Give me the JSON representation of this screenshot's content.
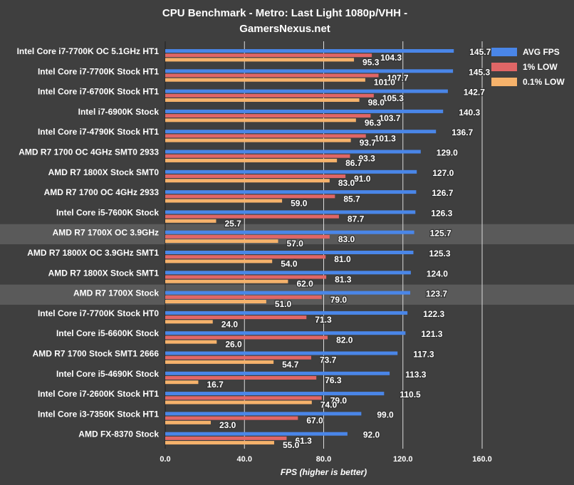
{
  "chart_data": {
    "type": "bar",
    "orientation": "horizontal",
    "title": "CPU Benchmark - Metro: Last Light 1080p/VHH - GamersNexus.net",
    "xlabel": "FPS (higher is better)",
    "ylabel": "",
    "xlim": [
      0,
      160
    ],
    "xticks": [
      "0.0",
      "40.0",
      "80.0",
      "120.0",
      "160.0"
    ],
    "grid": "vertical",
    "legend_position": "top-right",
    "highlighted_categories": [
      "AMD R7 1700X OC 3.9GHz",
      "AMD R7 1700X Stock"
    ],
    "categories": [
      "Intel Core i7-7700K OC 5.1GHz HT1",
      "Intel Core i7-7700K Stock HT1",
      "Intel Core i7-6700K Stock HT1",
      "Intel i7-6900K Stock",
      "Intel Core i7-4790K Stock HT1",
      "AMD R7 1700 OC 4GHz SMT0 2933",
      "AMD R7 1800X Stock SMT0",
      "AMD R7 1700 OC 4GHz 2933",
      "Intel Core i5-7600K Stock",
      "AMD R7 1700X OC 3.9GHz",
      "AMD R7 1800X OC 3.9GHz SMT1",
      "AMD R7 1800X Stock SMT1",
      "AMD R7 1700X Stock",
      "Intel Core i7-7700K Stock HT0",
      "Intel Core i5-6600K Stock",
      "AMD R7 1700 Stock SMT1 2666",
      "Intel Core i5-4690K Stock",
      "Intel Core i7-2600K Stock HT1",
      "Intel Core i3-7350K Stock HT1",
      "AMD FX-8370 Stock"
    ],
    "series": [
      {
        "name": "AVG FPS",
        "color": "#4a86e8",
        "values": [
          145.7,
          145.3,
          142.7,
          140.3,
          136.7,
          129.0,
          127.0,
          126.7,
          126.3,
          125.7,
          125.3,
          124.0,
          123.7,
          122.3,
          121.3,
          117.3,
          113.3,
          110.5,
          99.0,
          92.0
        ]
      },
      {
        "name": "1% LOW",
        "color": "#e06666",
        "values": [
          104.3,
          107.7,
          105.3,
          103.7,
          101.3,
          93.3,
          91.0,
          85.7,
          87.7,
          83.0,
          81.0,
          81.3,
          79.0,
          71.3,
          82.0,
          73.7,
          76.3,
          79.0,
          67.0,
          61.3
        ]
      },
      {
        "name": "0.1% LOW",
        "color": "#f6b26b",
        "values": [
          95.3,
          101.0,
          98.0,
          96.3,
          93.7,
          86.7,
          83.0,
          59.0,
          25.7,
          57.0,
          54.0,
          62.0,
          51.0,
          24.0,
          26.0,
          54.7,
          16.7,
          74.0,
          23.0,
          55.0
        ]
      }
    ]
  }
}
